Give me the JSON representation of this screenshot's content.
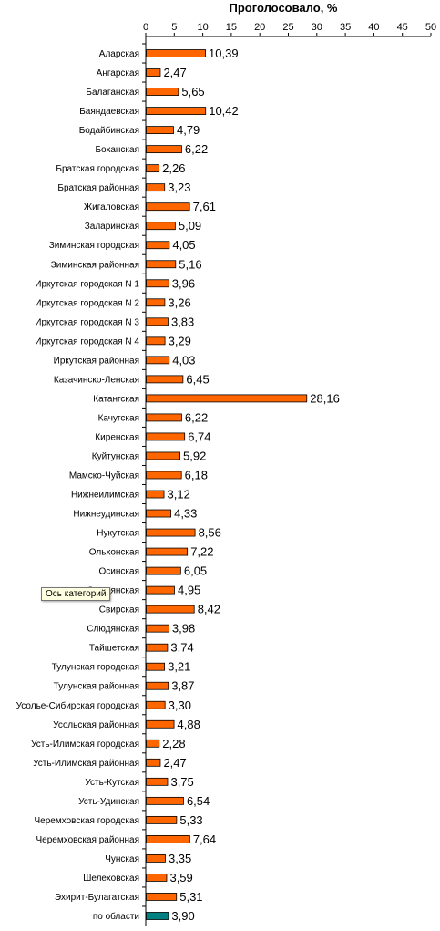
{
  "tooltip": "Ось категорий",
  "chart_data": {
    "type": "bar",
    "orientation": "horizontal",
    "title": "Проголосовало, %",
    "xlabel": "Проголосовало, %",
    "ylabel": "",
    "xlim": [
      0,
      50
    ],
    "ticks": [
      "0",
      "5",
      "10",
      "15",
      "20",
      "25",
      "30",
      "35",
      "40",
      "45",
      "50"
    ],
    "grid": false,
    "legend": "none",
    "colors": {
      "bar": "#ff6600",
      "highlight": "#008080",
      "edge": "#000000"
    },
    "categories": [
      "Аларская",
      "Ангарская",
      "Балаганская",
      "Баяндаевская",
      "Бодайбинская",
      "Боханская",
      "Братская городская",
      "Братская районная",
      "Жигаловская",
      "Заларинская",
      "Зиминская городская",
      "Зиминская районная",
      "Иркутская городская N 1",
      "Иркутская городская N 2",
      "Иркутская городская N 3",
      "Иркутская городская N 4",
      "Иркутская районная",
      "Казачинско-Ленская",
      "Катангская",
      "Качугская",
      "Киренская",
      "Куйтунская",
      "Мамско-Чуйская",
      "Нижнеилимская",
      "Нижнеудинская",
      "Нукутская",
      "Ольхонская",
      "Осинская",
      "Слюдянская",
      "Свирская",
      "Слюдянская",
      "Тайшетская",
      "Тулунская городская",
      "Тулунская районная",
      "Усолье-Сибирская городская",
      "Усольская районная",
      "Усть-Илимская городская",
      "Усть-Илимская районная",
      "Усть-Кутская",
      "Усть-Удинская",
      "Черемховская городская",
      "Черемховская районная",
      "Чунская",
      "Шелеховская",
      "Эхирит-Булагатская",
      "по области"
    ],
    "values": [
      10.39,
      2.47,
      5.65,
      10.42,
      4.79,
      6.22,
      2.26,
      3.23,
      7.61,
      5.09,
      4.05,
      5.16,
      3.96,
      3.26,
      3.83,
      3.29,
      4.03,
      6.45,
      28.16,
      6.22,
      6.74,
      5.92,
      6.18,
      3.12,
      4.33,
      8.56,
      7.22,
      6.05,
      4.95,
      8.42,
      3.98,
      3.74,
      3.21,
      3.87,
      3.3,
      4.88,
      2.28,
      2.47,
      3.75,
      6.54,
      5.33,
      7.64,
      3.35,
      3.59,
      5.31,
      3.9
    ],
    "value_labels": [
      "10,39",
      "2,47",
      "5,65",
      "10,42",
      "4,79",
      "6,22",
      "2,26",
      "3,23",
      "7,61",
      "5,09",
      "4,05",
      "5,16",
      "3,96",
      "3,26",
      "3,83",
      "3,29",
      "4,03",
      "6,45",
      "28,16",
      "6,22",
      "6,74",
      "5,92",
      "6,18",
      "3,12",
      "4,33",
      "8,56",
      "7,22",
      "6,05",
      "4,95",
      "8,42",
      "3,98",
      "3,74",
      "3,21",
      "3,87",
      "3,30",
      "4,88",
      "2,28",
      "2,47",
      "3,75",
      "6,54",
      "5,33",
      "7,64",
      "3,35",
      "3,59",
      "5,31",
      "3,90"
    ],
    "highlighted_category": "по области"
  }
}
